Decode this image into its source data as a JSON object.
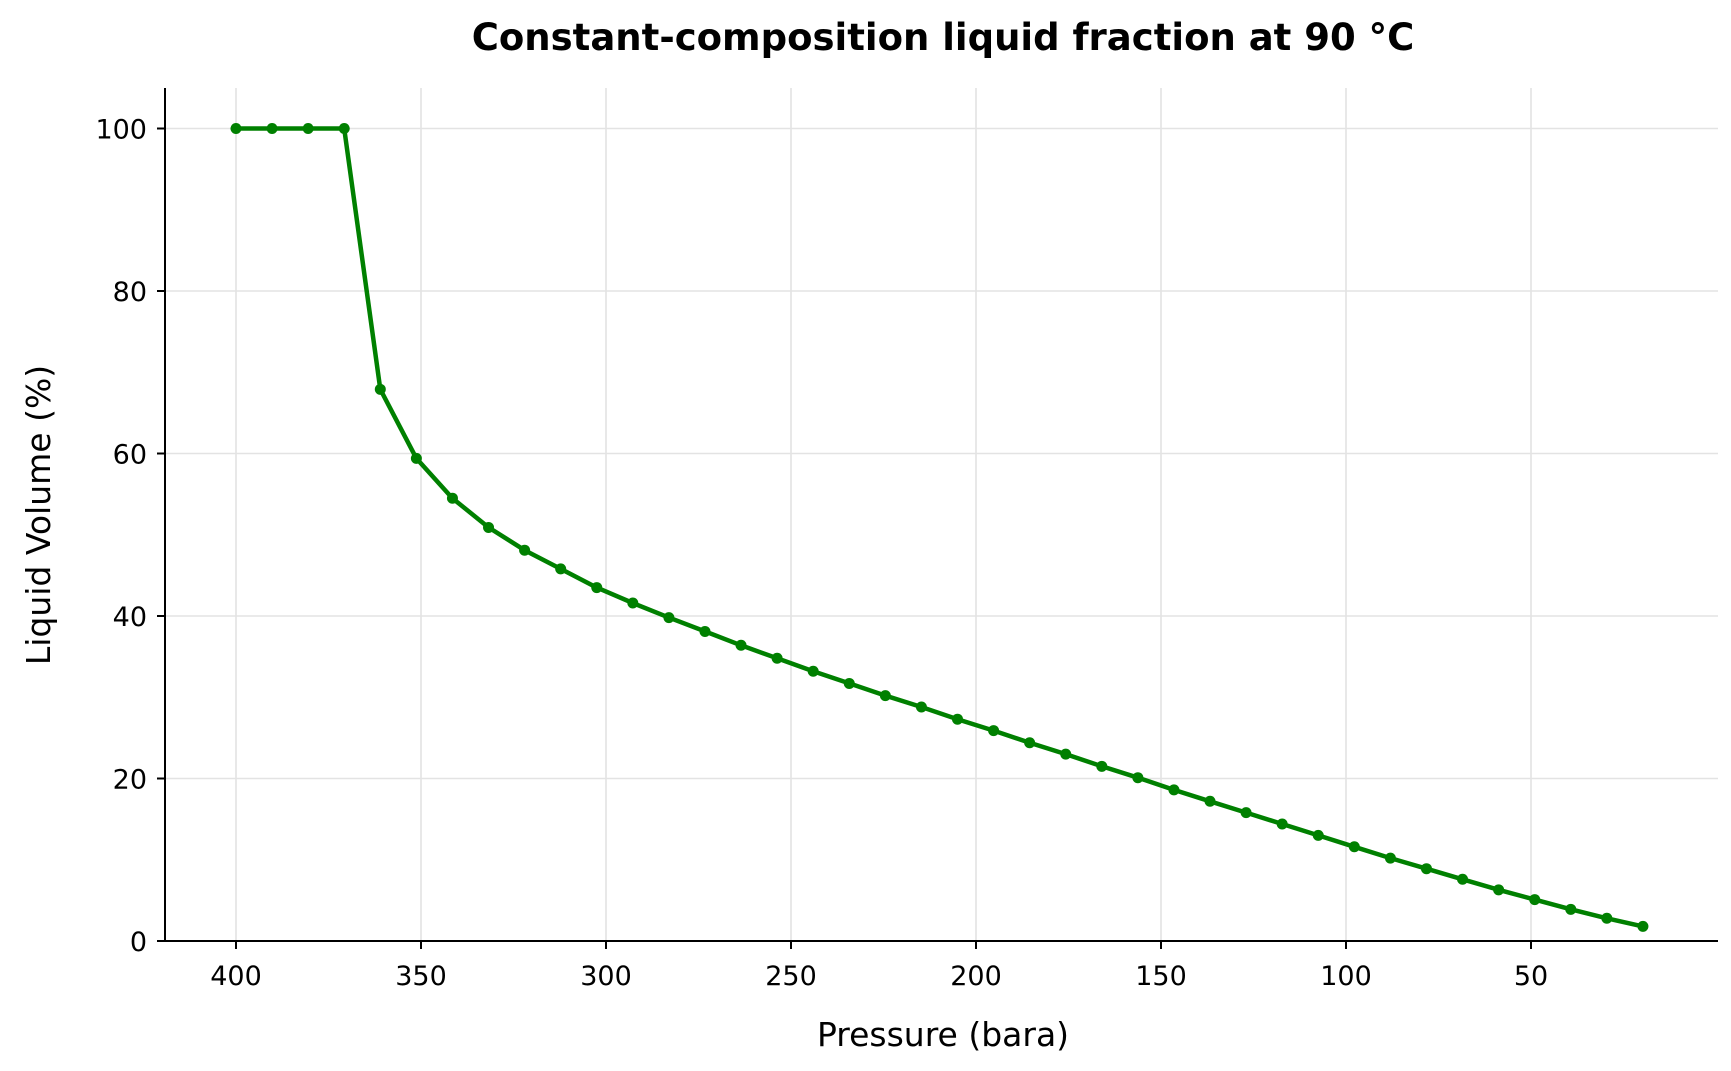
{
  "chart_data": {
    "type": "line",
    "title": "Constant-composition liquid fraction at 90 °C",
    "xlabel": "Pressure (bara)",
    "ylabel": "Liquid Volume (%)",
    "xlim": [
      420,
      0
    ],
    "ylim": [
      0,
      105
    ],
    "x_reversed": true,
    "x_ticks": [
      400,
      350,
      300,
      250,
      200,
      150,
      100,
      50
    ],
    "y_ticks": [
      0,
      20,
      40,
      60,
      80,
      100
    ],
    "grid": true,
    "legend": "none",
    "series": [
      {
        "color": "#008000",
        "x": [
          400,
          390.25,
          380.5,
          370.75,
          361,
          351.25,
          341.5,
          331.75,
          322,
          312.25,
          302.5,
          292.75,
          283,
          273.25,
          263.5,
          253.75,
          244,
          234.25,
          224.5,
          214.75,
          205,
          195.25,
          185.5,
          175.75,
          166,
          156.25,
          146.5,
          136.75,
          127,
          117.25,
          107.5,
          97.75,
          88,
          78.25,
          68.5,
          58.75,
          49,
          39.25,
          29.5,
          19.75
        ],
        "y": [
          100,
          100,
          100,
          100,
          67.9,
          59.4,
          54.5,
          50.9,
          48.1,
          45.8,
          43.5,
          41.6,
          39.8,
          38.1,
          36.4,
          34.8,
          33.2,
          31.7,
          30.2,
          28.8,
          27.3,
          25.9,
          24.4,
          23.0,
          21.5,
          20.1,
          18.6,
          17.2,
          15.8,
          14.4,
          13.0,
          11.6,
          10.2,
          8.9,
          7.6,
          6.3,
          5.1,
          3.9,
          2.8,
          1.8
        ]
      }
    ]
  }
}
